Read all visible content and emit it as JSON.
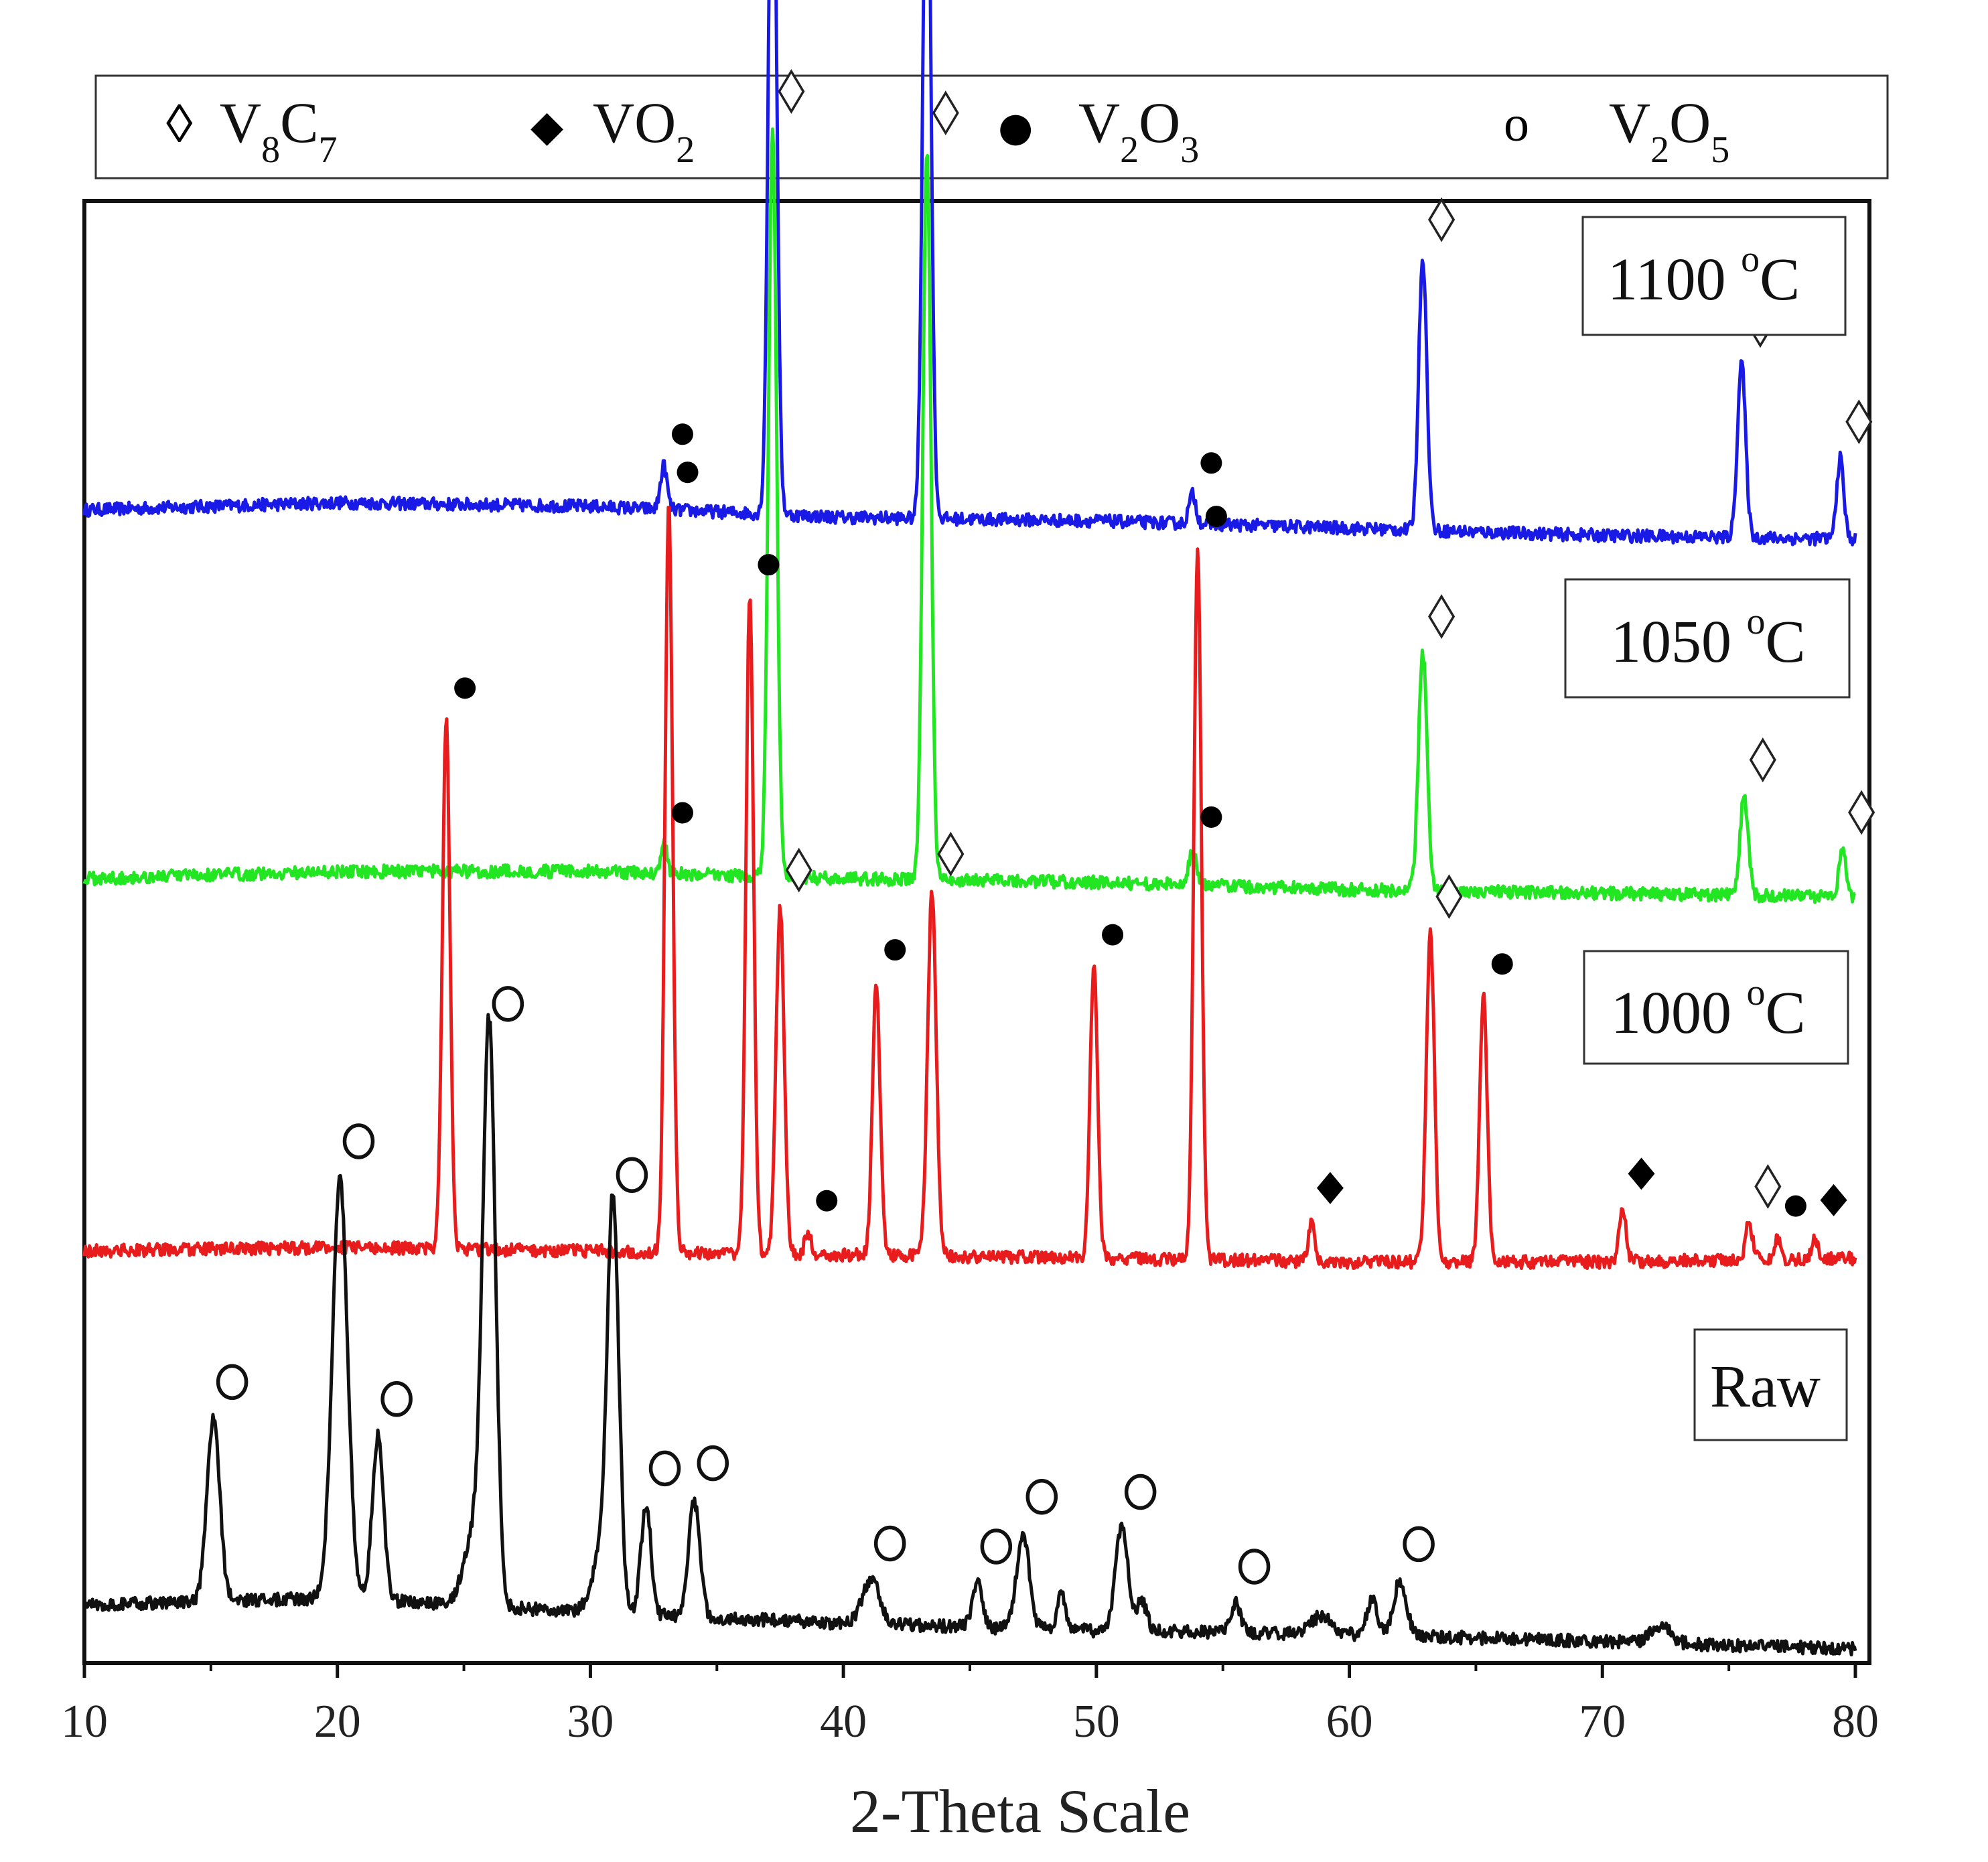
{
  "chart_data": {
    "type": "line",
    "title": "",
    "xlabel": "2-Theta Scale",
    "ylabel": "",
    "xlim": [
      10,
      80
    ],
    "x_ticks": [
      "10",
      "20",
      "30",
      "40",
      "50",
      "60",
      "70",
      "80"
    ],
    "grid": false,
    "legend_position": "top",
    "legend": [
      {
        "symbol": "◊",
        "name": "V8C7",
        "base1": "V",
        "sub1": "8",
        "base2": "C",
        "sub2": "7"
      },
      {
        "symbol": "◆",
        "name": "VO2",
        "base1": "VO",
        "sub1": "2",
        "base2": "",
        "sub2": ""
      },
      {
        "symbol": "●",
        "name": "V2O3",
        "base1": "V",
        "sub1": "2",
        "base2": "O",
        "sub2": "3"
      },
      {
        "symbol": "o",
        "name": "V2O5",
        "base1": "V",
        "sub1": "2",
        "base2": "O",
        "sub2": "5"
      }
    ],
    "series": [
      {
        "name": "1100 °C",
        "label_main": "1100 ",
        "label_sup": "o",
        "label_unit": "C",
        "color": "#1a1ae6",
        "offset": 3.05,
        "baseline": [
          [
            10,
            0.03
          ],
          [
            20,
            0.05
          ],
          [
            30,
            0.04
          ],
          [
            40,
            0.01
          ],
          [
            50,
            0.0
          ],
          [
            60,
            -0.02
          ],
          [
            70,
            -0.04
          ],
          [
            80,
            -0.05
          ]
        ],
        "peaks": [
          {
            "x": 32.9,
            "h": 0.12,
            "w": 0.13,
            "marker": "filled-circle"
          },
          {
            "x": 37.2,
            "h": 2.1,
            "w": 0.16,
            "marker": "open-diamond"
          },
          {
            "x": 43.3,
            "h": 2.05,
            "w": 0.16,
            "marker": "open-diamond"
          },
          {
            "x": 53.8,
            "h": 0.08,
            "w": 0.14,
            "marker": "filled-circle"
          },
          {
            "x": 62.9,
            "h": 0.75,
            "w": 0.16,
            "marker": "open-diamond"
          },
          {
            "x": 75.5,
            "h": 0.48,
            "w": 0.16,
            "marker": "open-diamond"
          },
          {
            "x": 79.4,
            "h": 0.22,
            "w": 0.14,
            "marker": "open-diamond"
          }
        ]
      },
      {
        "name": "1050 °C",
        "label_main": "1050 ",
        "label_sup": "o",
        "label_unit": "C",
        "color": "#22e622",
        "offset": 2.05,
        "baseline": [
          [
            10,
            0.02
          ],
          [
            20,
            0.04
          ],
          [
            30,
            0.04
          ],
          [
            40,
            0.02
          ],
          [
            50,
            0.01
          ],
          [
            60,
            -0.01
          ],
          [
            70,
            -0.02
          ],
          [
            80,
            -0.03
          ]
        ],
        "peaks": [
          {
            "x": 32.9,
            "h": 0.08,
            "w": 0.13,
            "marker": "filled-circle"
          },
          {
            "x": 37.2,
            "h": 2.05,
            "w": 0.16,
            "marker": "open-diamond"
          },
          {
            "x": 43.3,
            "h": 2.0,
            "w": 0.16,
            "marker": "open-diamond"
          },
          {
            "x": 53.8,
            "h": 0.1,
            "w": 0.14,
            "marker": "filled-circle"
          },
          {
            "x": 62.9,
            "h": 0.65,
            "w": 0.17,
            "marker": "open-diamond"
          },
          {
            "x": 75.6,
            "h": 0.27,
            "w": 0.16,
            "marker": "open-diamond"
          },
          {
            "x": 79.5,
            "h": 0.13,
            "w": 0.14,
            "marker": "open-diamond"
          }
        ]
      },
      {
        "name": "1000 °C",
        "label_main": "1000 ",
        "label_sup": "o",
        "label_unit": "C",
        "color": "#e81c1c",
        "offset": 1.05,
        "baseline": [
          [
            10,
            0.0
          ],
          [
            20,
            0.01
          ],
          [
            30,
            0.0
          ],
          [
            40,
            -0.01
          ],
          [
            50,
            -0.02
          ],
          [
            60,
            -0.03
          ],
          [
            70,
            -0.03
          ],
          [
            80,
            -0.02
          ]
        ],
        "peaks": [
          {
            "x": 24.3,
            "h": 1.45,
            "w": 0.15,
            "marker": "filled-circle"
          },
          {
            "x": 33.1,
            "h": 2.05,
            "w": 0.15,
            "marker": "filled-circle"
          },
          {
            "x": 36.3,
            "h": 1.8,
            "w": 0.15,
            "marker": "filled-circle"
          },
          {
            "x": 37.5,
            "h": 0.95,
            "w": 0.16,
            "marker": "open-diamond"
          },
          {
            "x": 38.6,
            "h": 0.06,
            "w": 0.12,
            "marker": "filled-circle"
          },
          {
            "x": 41.3,
            "h": 0.75,
            "w": 0.15,
            "marker": "filled-circle"
          },
          {
            "x": 43.5,
            "h": 1.0,
            "w": 0.17,
            "marker": "open-diamond"
          },
          {
            "x": 49.9,
            "h": 0.8,
            "w": 0.15,
            "marker": "filled-circle"
          },
          {
            "x": 54.0,
            "h": 1.95,
            "w": 0.15,
            "marker": "filled-circle"
          },
          {
            "x": 58.5,
            "h": 0.1,
            "w": 0.13,
            "marker": "filled-diamond"
          },
          {
            "x": 63.2,
            "h": 0.9,
            "w": 0.16,
            "marker": "open-diamond"
          },
          {
            "x": 65.3,
            "h": 0.73,
            "w": 0.15,
            "marker": "filled-circle"
          },
          {
            "x": 70.8,
            "h": 0.14,
            "w": 0.14,
            "marker": "filled-diamond"
          },
          {
            "x": 75.8,
            "h": 0.1,
            "w": 0.14,
            "marker": "open-diamond"
          },
          {
            "x": 76.9,
            "h": 0.06,
            "w": 0.12,
            "marker": "filled-circle"
          },
          {
            "x": 78.4,
            "h": 0.06,
            "w": 0.12,
            "marker": "filled-diamond"
          }
        ]
      },
      {
        "name": "Raw",
        "label_main": "Raw",
        "label_sup": "",
        "label_unit": "",
        "color": "#111111",
        "offset": 0.0,
        "baseline": [
          [
            10,
            0.08
          ],
          [
            20,
            0.1
          ],
          [
            30,
            0.06
          ],
          [
            40,
            0.03
          ],
          [
            50,
            0.01
          ],
          [
            60,
            0.0
          ],
          [
            70,
            -0.02
          ],
          [
            80,
            -0.04
          ]
        ],
        "peaks": [
          {
            "x": 15.1,
            "h": 0.5,
            "w": 0.25,
            "marker": "open-circle"
          },
          {
            "x": 20.1,
            "h": 1.15,
            "w": 0.3,
            "marker": "open-circle"
          },
          {
            "x": 21.6,
            "h": 0.45,
            "w": 0.22,
            "marker": "open-circle"
          },
          {
            "x": 25.4,
            "h": 0.2,
            "w": 0.4,
            "marker": "none"
          },
          {
            "x": 26.0,
            "h": 1.55,
            "w": 0.25,
            "marker": "open-circle"
          },
          {
            "x": 30.4,
            "h": 0.15,
            "w": 0.35,
            "marker": "none"
          },
          {
            "x": 30.9,
            "h": 1.1,
            "w": 0.23,
            "marker": "open-circle"
          },
          {
            "x": 32.2,
            "h": 0.3,
            "w": 0.2,
            "marker": "open-circle"
          },
          {
            "x": 34.1,
            "h": 0.32,
            "w": 0.22,
            "marker": "open-circle"
          },
          {
            "x": 41.1,
            "h": 0.12,
            "w": 0.35,
            "marker": "open-circle"
          },
          {
            "x": 45.3,
            "h": 0.12,
            "w": 0.2,
            "marker": "open-circle"
          },
          {
            "x": 47.1,
            "h": 0.26,
            "w": 0.25,
            "marker": "open-circle"
          },
          {
            "x": 48.6,
            "h": 0.1,
            "w": 0.15,
            "marker": "none"
          },
          {
            "x": 51.0,
            "h": 0.28,
            "w": 0.25,
            "marker": "open-circle"
          },
          {
            "x": 51.8,
            "h": 0.08,
            "w": 0.2,
            "marker": "none"
          },
          {
            "x": 55.5,
            "h": 0.08,
            "w": 0.2,
            "marker": "open-circle"
          },
          {
            "x": 58.9,
            "h": 0.05,
            "w": 0.4,
            "marker": "none"
          },
          {
            "x": 60.9,
            "h": 0.1,
            "w": 0.2,
            "marker": "none"
          },
          {
            "x": 62.0,
            "h": 0.15,
            "w": 0.25,
            "marker": "open-circle"
          },
          {
            "x": 72.3,
            "h": 0.05,
            "w": 0.4,
            "marker": "none"
          }
        ]
      }
    ]
  }
}
